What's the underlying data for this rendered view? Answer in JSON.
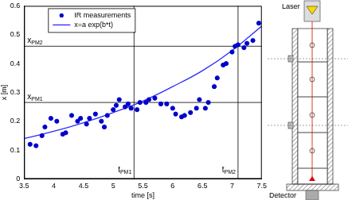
{
  "chart_data": {
    "type": "scatter",
    "x_label": "time [s]",
    "y_label": "x [m]",
    "xlim": [
      3.5,
      7.5
    ],
    "xticks": [
      3.5,
      4,
      4.5,
      5,
      5.5,
      6,
      6.5,
      7,
      7.5
    ],
    "ylim": [
      0,
      0.6
    ],
    "yticks": [
      0,
      0.1,
      0.2,
      0.3,
      0.4,
      0.5,
      0.6
    ],
    "grid": false,
    "legend": "top-left",
    "series": [
      {
        "name": "IR measurements",
        "color": "#0000cc",
        "type": "scatter",
        "marker": "dot",
        "x": [
          3.6,
          3.7,
          3.8,
          3.85,
          3.95,
          4.05,
          4.15,
          4.2,
          4.3,
          4.4,
          4.45,
          4.55,
          4.6,
          4.7,
          4.8,
          4.85,
          4.9,
          5.0,
          5.05,
          5.1,
          5.2,
          5.25,
          5.3,
          5.4,
          5.45,
          5.55,
          5.6,
          5.7,
          5.8,
          5.9,
          6.0,
          6.05,
          6.15,
          6.2,
          6.3,
          6.4,
          6.45,
          6.55,
          6.6,
          6.7,
          6.75,
          6.85,
          6.9,
          7.0,
          7.05,
          7.1,
          7.2,
          7.25,
          7.35,
          7.45
        ],
        "values": [
          0.12,
          0.115,
          0.15,
          0.18,
          0.21,
          0.2,
          0.155,
          0.16,
          0.22,
          0.2,
          0.21,
          0.19,
          0.21,
          0.225,
          0.2,
          0.18,
          0.22,
          0.24,
          0.255,
          0.275,
          0.25,
          0.26,
          0.245,
          0.24,
          0.265,
          0.265,
          0.275,
          0.28,
          0.26,
          0.26,
          0.245,
          0.225,
          0.215,
          0.22,
          0.23,
          0.245,
          0.275,
          0.245,
          0.265,
          0.32,
          0.35,
          0.395,
          0.4,
          0.44,
          0.46,
          0.465,
          0.455,
          0.47,
          0.48,
          0.54
        ]
      },
      {
        "name": "x=a exp(b*t)",
        "color": "#2a2aff",
        "type": "line",
        "marker": "none",
        "line_style": "solid",
        "x": [
          3.5,
          4,
          4.5,
          5,
          5.5,
          6,
          6.5,
          7,
          7.5
        ],
        "values": [
          0.14,
          0.165,
          0.195,
          0.23,
          0.27,
          0.32,
          0.375,
          0.445,
          0.53
        ]
      }
    ],
    "hlines": [
      {
        "y": 0.265,
        "text": "x",
        "sub": "PM1"
      },
      {
        "y": 0.46,
        "text": "x",
        "sub": "PM2"
      }
    ],
    "vlines": [
      {
        "x": 5.35,
        "text": "t",
        "sub": "PM1"
      },
      {
        "x": 7.1,
        "text": "t",
        "sub": "PM2"
      }
    ]
  },
  "diagram": {
    "laser_label": "Laser",
    "detector_label": "Detector"
  }
}
